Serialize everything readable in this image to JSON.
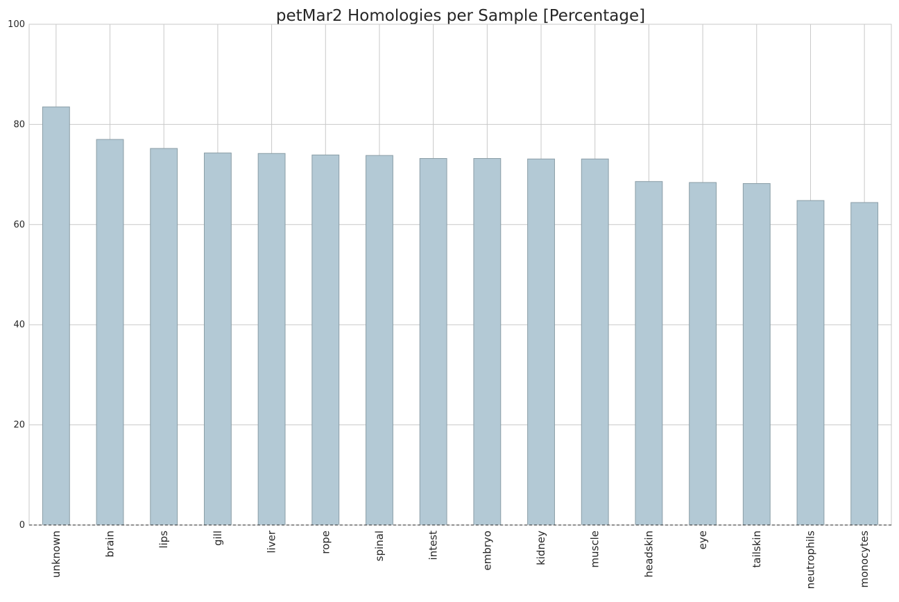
{
  "chart_data": {
    "type": "bar",
    "title": "petMar2 Homologies per Sample [Percentage]",
    "xlabel": "",
    "ylabel": "",
    "categories": [
      "unknown",
      "brain",
      "lips",
      "gill",
      "liver",
      "rope",
      "spinal",
      "intest",
      "embryo",
      "kidney",
      "muscle",
      "headskin",
      "eye",
      "tailskin",
      "neutrophils",
      "monocytes"
    ],
    "values": [
      83.5,
      77.0,
      75.2,
      74.3,
      74.2,
      73.9,
      73.8,
      73.2,
      73.2,
      73.1,
      73.1,
      68.6,
      68.4,
      68.2,
      64.8,
      64.4
    ],
    "ylim": [
      0,
      100
    ],
    "yticks": [
      "0",
      "20",
      "40",
      "60",
      "80",
      "100"
    ],
    "ytick_values": [
      0,
      20,
      40,
      60,
      80,
      100
    ],
    "grid": true,
    "legend": "none",
    "colors": {
      "bar": "#b3c9d5",
      "bar_edge": "#8a9da6",
      "grid": "#c8c8c8",
      "baseline": "#222222"
    }
  }
}
